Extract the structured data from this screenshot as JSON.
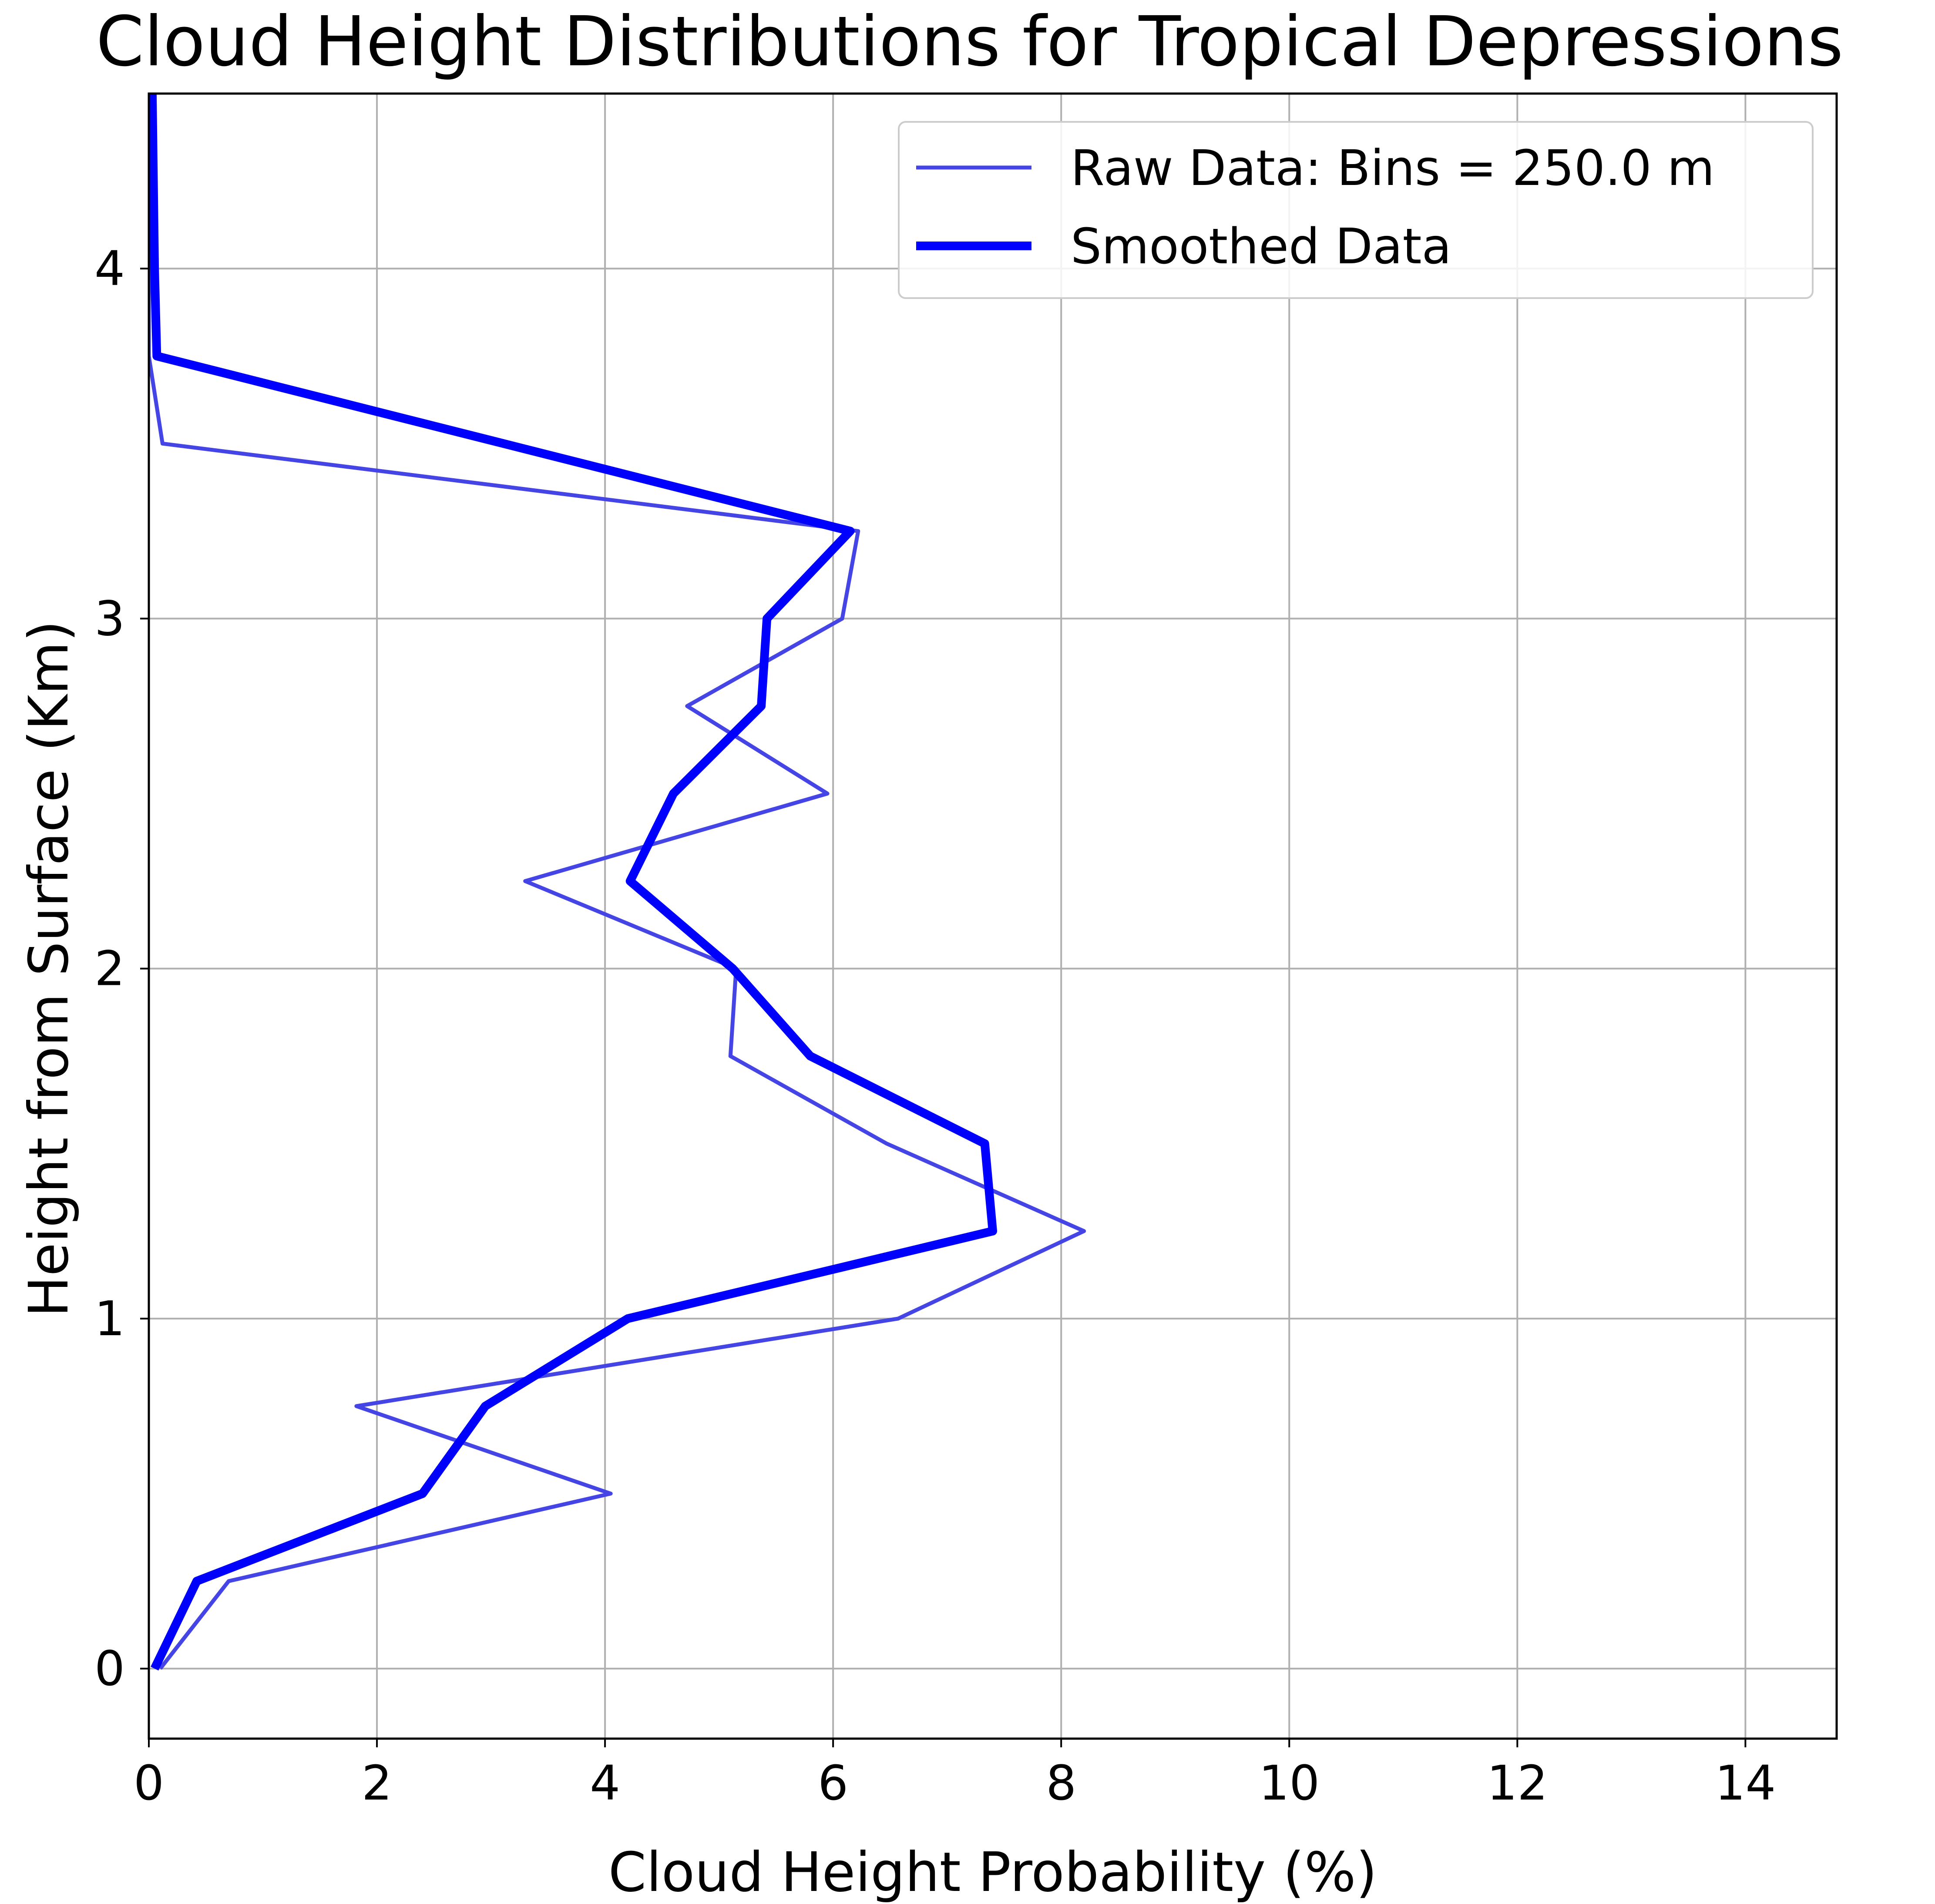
{
  "chart_data": {
    "type": "line",
    "title": "Cloud Height Distributions for Tropical Depressions",
    "xlabel": "Cloud Height Probability (%)",
    "ylabel": "Height from Surface (Km)",
    "xlim": [
      0,
      14.8
    ],
    "ylim": [
      -0.2,
      4.5
    ],
    "xticks": [
      0,
      2,
      4,
      6,
      8,
      10,
      12,
      14
    ],
    "yticks": [
      0,
      1,
      2,
      3,
      4
    ],
    "grid": true,
    "legend_position": "top-right",
    "series": [
      {
        "name": "Raw Data: Bins = 250.0 m",
        "color": "#4545e6",
        "style": "thin",
        "points": [
          [
            0.1,
            0.0
          ],
          [
            0.7,
            0.25
          ],
          [
            4.05,
            0.5
          ],
          [
            1.82,
            0.75
          ],
          [
            6.57,
            1.0
          ],
          [
            8.2,
            1.25
          ],
          [
            6.47,
            1.5
          ],
          [
            5.1,
            1.75
          ],
          [
            5.15,
            2.0
          ],
          [
            3.3,
            2.25
          ],
          [
            5.95,
            2.5
          ],
          [
            4.72,
            2.75
          ],
          [
            6.08,
            3.0
          ],
          [
            6.22,
            3.25
          ],
          [
            0.12,
            3.5
          ],
          [
            0.0,
            3.75
          ],
          [
            0.0,
            4.0
          ],
          [
            0.0,
            4.5
          ]
        ]
      },
      {
        "name": "Smoothed Data",
        "color": "#0000ff",
        "style": "thick",
        "points": [
          [
            0.05,
            0.0
          ],
          [
            0.42,
            0.25
          ],
          [
            2.4,
            0.5
          ],
          [
            2.95,
            0.75
          ],
          [
            4.2,
            1.0
          ],
          [
            7.4,
            1.25
          ],
          [
            7.33,
            1.5
          ],
          [
            5.8,
            1.75
          ],
          [
            5.12,
            2.0
          ],
          [
            4.22,
            2.25
          ],
          [
            4.6,
            2.5
          ],
          [
            5.37,
            2.75
          ],
          [
            5.42,
            3.0
          ],
          [
            6.15,
            3.25
          ],
          [
            0.07,
            3.75
          ],
          [
            0.05,
            4.0
          ],
          [
            0.03,
            4.5
          ]
        ]
      }
    ]
  }
}
